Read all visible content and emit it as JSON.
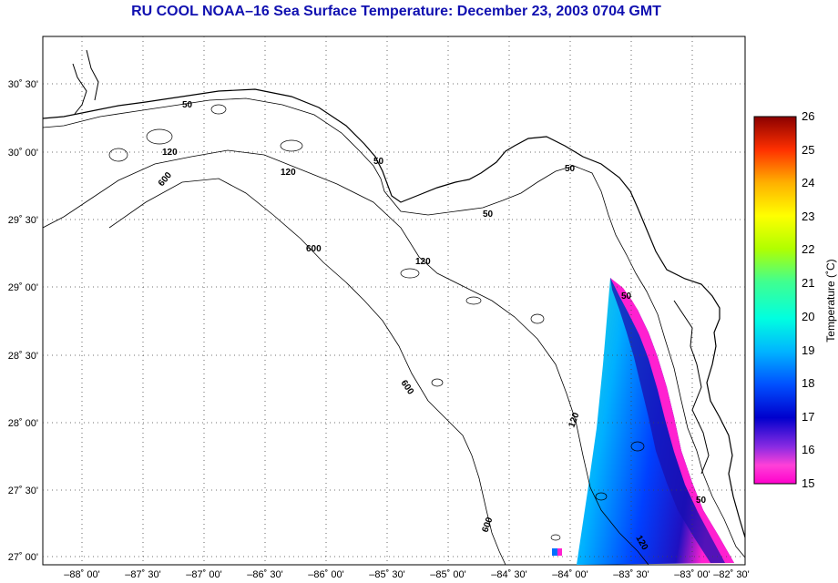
{
  "title": "RU COOL  NOAA–16  Sea Surface Temperature:  December 23, 2003 0704 GMT",
  "lat_labels": [
    "30˚ 30'",
    "30˚ 00'",
    "29˚ 30'",
    "29˚ 00'",
    "28˚ 30'",
    "28˚ 00'",
    "27˚ 30'",
    "27˚ 00'"
  ],
  "lon_labels": [
    "–88˚ 00'",
    "–87˚ 30'",
    "–87˚ 00'",
    "–86˚ 30'",
    "–86˚ 00'",
    "–85˚ 30'",
    "–85˚ 00'",
    "–84˚ 30'",
    "–84˚ 00'",
    "–83˚ 30'",
    "–83˚ 00'",
    "–82˚ 30'"
  ],
  "colorbar": {
    "label": "Temperature (˚C)",
    "ticks": [
      "26",
      "25",
      "24",
      "23",
      "22",
      "21",
      "20",
      "19",
      "18",
      "17",
      "16",
      "15"
    ],
    "min": 15,
    "max": 26,
    "colors": [
      "#ff00cc",
      "#8a2be2",
      "#0000cd",
      "#0050ff",
      "#00b4ff",
      "#00ffe0",
      "#40ff90",
      "#b0ff00",
      "#ffff00",
      "#ffb000",
      "#ff5000",
      "#e00000",
      "#8b0000"
    ]
  },
  "contour_labels": [
    "50",
    "50",
    "50",
    "50",
    "50",
    "50",
    "120",
    "120",
    "120",
    "120",
    "120",
    "600",
    "600",
    "600",
    "600"
  ]
}
